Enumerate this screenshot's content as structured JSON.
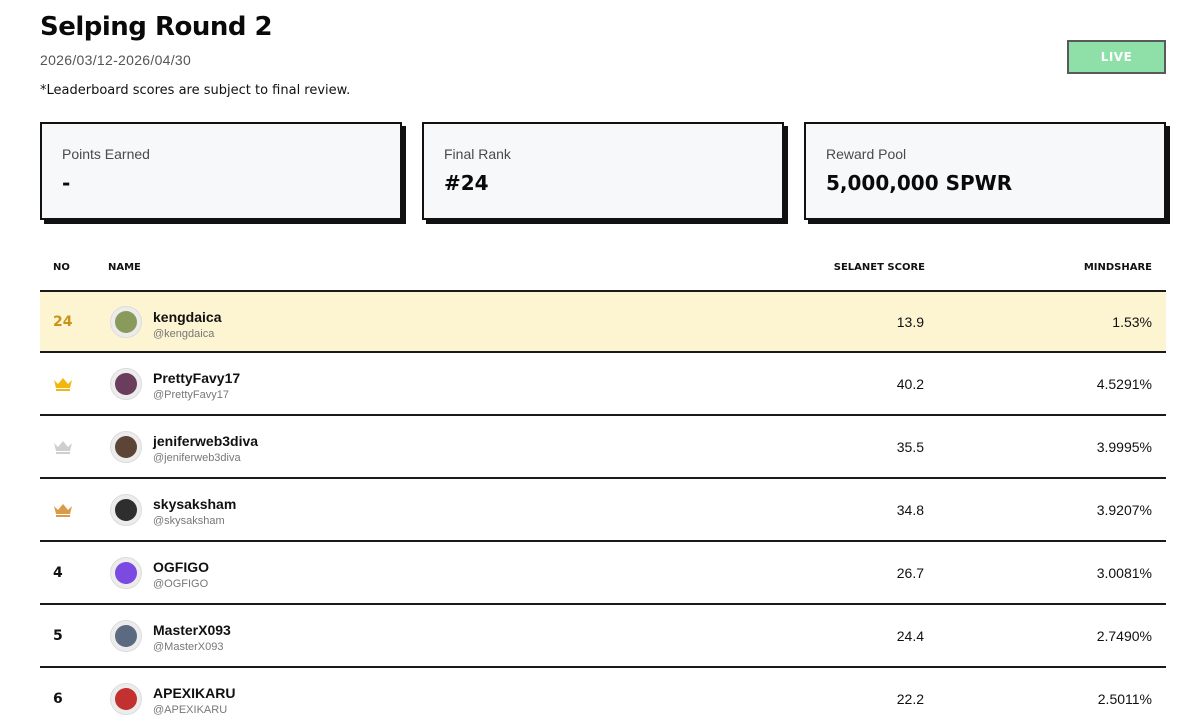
{
  "header": {
    "title": "Selping Round 2",
    "date_range": "2026/03/12-2026/04/30",
    "disclaimer": "*Leaderboard scores are subject to final review.",
    "status": "LIVE"
  },
  "stats": [
    {
      "label": "Points Earned",
      "value": "-"
    },
    {
      "label": "Final Rank",
      "value": "#24"
    },
    {
      "label": "Reward Pool",
      "value": "5,000,000 SPWR"
    }
  ],
  "table": {
    "columns": {
      "no": "NO",
      "name": "NAME",
      "score": "SELANET SCORE",
      "mindshare": "MINDSHARE"
    },
    "rows": [
      {
        "rank": "24",
        "rank_icon": "",
        "name": "kengdaica",
        "handle": "@kengdaica",
        "score": "13.9",
        "mindshare": "1.53%",
        "highlight": true,
        "avatar_color": "#8a9a5b"
      },
      {
        "rank": "",
        "rank_icon": "gold-crown-icon",
        "name": "PrettyFavy17",
        "handle": "@PrettyFavy17",
        "score": "40.2",
        "mindshare": "4.5291%",
        "highlight": false,
        "avatar_color": "#6b3d5c"
      },
      {
        "rank": "",
        "rank_icon": "silver-crown-icon",
        "name": "jeniferweb3diva",
        "handle": "@jeniferweb3diva",
        "score": "35.5",
        "mindshare": "3.9995%",
        "highlight": false,
        "avatar_color": "#5c4536"
      },
      {
        "rank": "",
        "rank_icon": "bronze-crown-icon",
        "name": "skysaksham",
        "handle": "@skysaksham",
        "score": "34.8",
        "mindshare": "3.9207%",
        "highlight": false,
        "avatar_color": "#2e2e2e"
      },
      {
        "rank": "4",
        "rank_icon": "",
        "name": "OGFIGO",
        "handle": "@OGFIGO",
        "score": "26.7",
        "mindshare": "3.0081%",
        "highlight": false,
        "avatar_color": "#7b4ae0"
      },
      {
        "rank": "5",
        "rank_icon": "",
        "name": "MasterX093",
        "handle": "@MasterX093",
        "score": "24.4",
        "mindshare": "2.7490%",
        "highlight": false,
        "avatar_color": "#5b6a80"
      },
      {
        "rank": "6",
        "rank_icon": "",
        "name": "APEXIKARU",
        "handle": "@APEXIKARU",
        "score": "22.2",
        "mindshare": "2.5011%",
        "highlight": false,
        "avatar_color": "#c23030"
      }
    ]
  },
  "colors": {
    "live": "#8ee0a8",
    "highlight_row": "#fdf4d2",
    "gold": "#f2b70f",
    "silver": "#cfcfcf",
    "bronze": "#d99a4a"
  }
}
